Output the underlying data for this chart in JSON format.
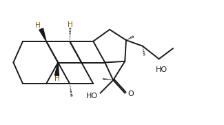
{
  "bg": "#ffffff",
  "bond_lw": 1.4,
  "bond_color": "#1a1a1a",
  "H_color": "#7a5c00",
  "text_color": "#1a1a1a",
  "figsize": [
    3.25,
    1.81
  ],
  "dpi": 100,
  "xlim": [
    0.0,
    9.5
  ],
  "ylim": [
    1.2,
    6.2
  ]
}
